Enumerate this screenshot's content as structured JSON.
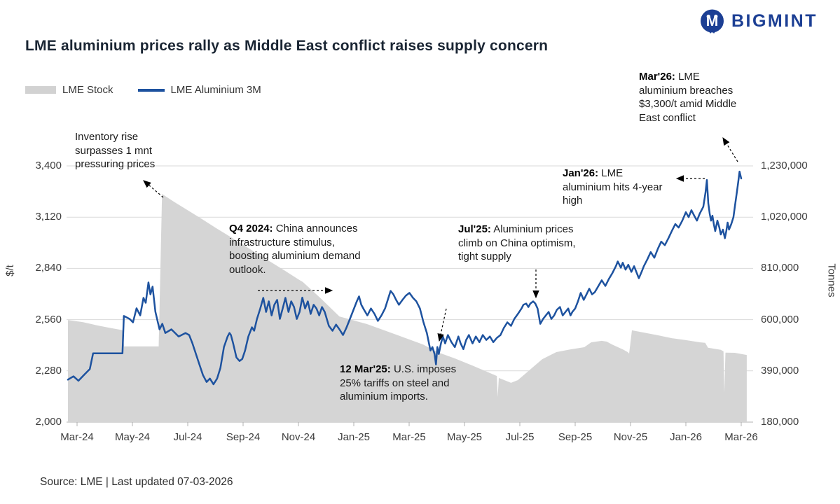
{
  "header": {
    "logo_text": "BIGMINT",
    "title": "LME aluminium prices rally as Middle East conflict raises supply concern"
  },
  "icons": {
    "logo": "bigmint-circle-m-icon"
  },
  "legend": [
    {
      "label": "LME Stock",
      "type": "area"
    },
    {
      "label": "LME Aluminium 3M",
      "type": "line"
    }
  ],
  "source_note": "Source: LME | Last updated 07-03-2026",
  "colors": {
    "line": "#1d529f",
    "area": "#d5d5d5",
    "logo": "#1c3f94",
    "grid": "#d9d9d9",
    "axis": "#b0b0b0",
    "title": "#1a2533",
    "annotation_arrow": "#000000"
  },
  "chart_data": {
    "type": "line",
    "title": "LME aluminium prices rally as Middle East conflict raises supply concern",
    "x_axis": {
      "labels": [
        "Mar-24",
        "May-24",
        "Jul-24",
        "Sep-24",
        "Nov-24",
        "Jan-25",
        "Mar-25",
        "May-25",
        "Jul-25",
        "Sep-25",
        "Nov-25",
        "Jan-26",
        "Mar-26"
      ],
      "unit": "months since Mar-2024 (0 = Mar-24, 24 = Mar-26)"
    },
    "y_left": {
      "label": "$/t",
      "ticks": [
        "3,400",
        "3,120",
        "2,840",
        "2,560",
        "2,280",
        "2,000"
      ],
      "range": [
        2000,
        3400
      ]
    },
    "y_right": {
      "label": "Tonnes",
      "ticks": [
        "1,230,000",
        "1,020,000",
        "810,000",
        "600,000",
        "390,000",
        "180,000"
      ],
      "range": [
        180000,
        1230000
      ]
    },
    "grid": true,
    "legend_position": "top-left",
    "series": [
      {
        "name": "LME Stock",
        "type": "area",
        "axis": "right",
        "points": [
          [
            -0.33,
            598000
          ],
          [
            0.2,
            590000
          ],
          [
            0.7,
            577000
          ],
          [
            1.2,
            566000
          ],
          [
            1.64,
            557000
          ],
          [
            1.7,
            490000
          ],
          [
            2.95,
            490000
          ],
          [
            3.07,
            1115000
          ],
          [
            3.5,
            1083000
          ],
          [
            4.0,
            1048000
          ],
          [
            4.5,
            1013000
          ],
          [
            5.0,
            977000
          ],
          [
            5.5,
            942000
          ],
          [
            6.0,
            907000
          ],
          [
            6.5,
            871000
          ],
          [
            7.0,
            836000
          ],
          [
            7.5,
            801000
          ],
          [
            8.0,
            765000
          ],
          [
            8.16,
            754000
          ],
          [
            8.78,
            690000
          ],
          [
            9.48,
            613000
          ],
          [
            10.47,
            582000
          ],
          [
            11.52,
            539000
          ],
          [
            12.51,
            498000
          ],
          [
            13.02,
            467000
          ],
          [
            13.65,
            441000
          ],
          [
            14.28,
            412000
          ],
          [
            14.92,
            381000
          ],
          [
            15.17,
            369000
          ],
          [
            15.2,
            283000
          ],
          [
            15.24,
            361000
          ],
          [
            15.68,
            341000
          ],
          [
            15.93,
            352000
          ],
          [
            16.31,
            389000
          ],
          [
            16.81,
            438000
          ],
          [
            17.32,
            467000
          ],
          [
            17.83,
            478000
          ],
          [
            18.33,
            487000
          ],
          [
            18.58,
            507000
          ],
          [
            18.96,
            513000
          ],
          [
            19.14,
            510000
          ],
          [
            19.34,
            498000
          ],
          [
            19.72,
            478000
          ],
          [
            19.9,
            467000
          ],
          [
            19.95,
            461000
          ],
          [
            20.05,
            556000
          ],
          [
            20.48,
            547000
          ],
          [
            20.98,
            536000
          ],
          [
            21.49,
            524000
          ],
          [
            22.0,
            516000
          ],
          [
            22.5,
            507000
          ],
          [
            22.7,
            505000
          ],
          [
            22.8,
            485000
          ],
          [
            23.26,
            476000
          ],
          [
            23.36,
            470000
          ],
          [
            23.39,
            300000
          ],
          [
            23.43,
            465000
          ],
          [
            23.77,
            464000
          ],
          [
            24.2,
            455000
          ]
        ]
      },
      {
        "name": "LME Aluminium 3M",
        "type": "line",
        "axis": "left",
        "points": [
          [
            -0.33,
            2232
          ],
          [
            -0.13,
            2250
          ],
          [
            0.05,
            2226
          ],
          [
            0.25,
            2258
          ],
          [
            0.46,
            2290
          ],
          [
            0.58,
            2376
          ],
          [
            1.64,
            2376
          ],
          [
            1.69,
            2580
          ],
          [
            1.9,
            2564
          ],
          [
            2.02,
            2545
          ],
          [
            2.15,
            2622
          ],
          [
            2.28,
            2583
          ],
          [
            2.4,
            2679
          ],
          [
            2.48,
            2652
          ],
          [
            2.58,
            2763
          ],
          [
            2.65,
            2698
          ],
          [
            2.73,
            2740
          ],
          [
            2.83,
            2603
          ],
          [
            2.98,
            2507
          ],
          [
            3.08,
            2537
          ],
          [
            3.19,
            2487
          ],
          [
            3.41,
            2507
          ],
          [
            3.67,
            2468
          ],
          [
            3.92,
            2487
          ],
          [
            4.05,
            2476
          ],
          [
            4.17,
            2430
          ],
          [
            4.42,
            2315
          ],
          [
            4.55,
            2257
          ],
          [
            4.68,
            2219
          ],
          [
            4.8,
            2238
          ],
          [
            4.93,
            2207
          ],
          [
            5.06,
            2238
          ],
          [
            5.18,
            2296
          ],
          [
            5.31,
            2411
          ],
          [
            5.44,
            2468
          ],
          [
            5.51,
            2487
          ],
          [
            5.56,
            2476
          ],
          [
            5.64,
            2430
          ],
          [
            5.76,
            2353
          ],
          [
            5.87,
            2334
          ],
          [
            5.97,
            2345
          ],
          [
            6.07,
            2391
          ],
          [
            6.19,
            2468
          ],
          [
            6.32,
            2518
          ],
          [
            6.4,
            2499
          ],
          [
            6.5,
            2564
          ],
          [
            6.62,
            2621
          ],
          [
            6.73,
            2679
          ],
          [
            6.83,
            2602
          ],
          [
            6.93,
            2660
          ],
          [
            7.03,
            2583
          ],
          [
            7.13,
            2641
          ],
          [
            7.23,
            2668
          ],
          [
            7.33,
            2564
          ],
          [
            7.43,
            2621
          ],
          [
            7.53,
            2679
          ],
          [
            7.64,
            2602
          ],
          [
            7.74,
            2660
          ],
          [
            7.84,
            2629
          ],
          [
            7.94,
            2564
          ],
          [
            8.04,
            2602
          ],
          [
            8.14,
            2680
          ],
          [
            8.24,
            2621
          ],
          [
            8.34,
            2660
          ],
          [
            8.44,
            2591
          ],
          [
            8.55,
            2641
          ],
          [
            8.65,
            2621
          ],
          [
            8.75,
            2583
          ],
          [
            8.85,
            2629
          ],
          [
            8.95,
            2602
          ],
          [
            9.1,
            2526
          ],
          [
            9.23,
            2499
          ],
          [
            9.36,
            2533
          ],
          [
            9.48,
            2507
          ],
          [
            9.61,
            2476
          ],
          [
            9.73,
            2514
          ],
          [
            9.86,
            2564
          ],
          [
            9.99,
            2614
          ],
          [
            10.11,
            2660
          ],
          [
            10.19,
            2687
          ],
          [
            10.27,
            2641
          ],
          [
            10.37,
            2614
          ],
          [
            10.49,
            2583
          ],
          [
            10.62,
            2621
          ],
          [
            10.75,
            2591
          ],
          [
            10.87,
            2553
          ],
          [
            11.0,
            2583
          ],
          [
            11.13,
            2621
          ],
          [
            11.25,
            2679
          ],
          [
            11.33,
            2717
          ],
          [
            11.43,
            2698
          ],
          [
            11.53,
            2668
          ],
          [
            11.63,
            2641
          ],
          [
            11.76,
            2668
          ],
          [
            11.88,
            2691
          ],
          [
            12.01,
            2706
          ],
          [
            12.14,
            2679
          ],
          [
            12.26,
            2660
          ],
          [
            12.39,
            2621
          ],
          [
            12.52,
            2545
          ],
          [
            12.64,
            2487
          ],
          [
            12.77,
            2391
          ],
          [
            12.84,
            2410
          ],
          [
            12.92,
            2372
          ],
          [
            12.97,
            2315
          ],
          [
            13.02,
            2410
          ],
          [
            13.07,
            2372
          ],
          [
            13.15,
            2430
          ],
          [
            13.22,
            2468
          ],
          [
            13.3,
            2430
          ],
          [
            13.4,
            2476
          ],
          [
            13.53,
            2437
          ],
          [
            13.65,
            2410
          ],
          [
            13.78,
            2468
          ],
          [
            13.86,
            2430
          ],
          [
            13.96,
            2399
          ],
          [
            14.06,
            2449
          ],
          [
            14.16,
            2476
          ],
          [
            14.29,
            2430
          ],
          [
            14.41,
            2468
          ],
          [
            14.54,
            2437
          ],
          [
            14.66,
            2476
          ],
          [
            14.79,
            2449
          ],
          [
            14.92,
            2468
          ],
          [
            15.04,
            2437
          ],
          [
            15.17,
            2460
          ],
          [
            15.3,
            2476
          ],
          [
            15.42,
            2514
          ],
          [
            15.55,
            2545
          ],
          [
            15.68,
            2526
          ],
          [
            15.8,
            2564
          ],
          [
            15.93,
            2591
          ],
          [
            16.06,
            2621
          ],
          [
            16.13,
            2641
          ],
          [
            16.23,
            2648
          ],
          [
            16.31,
            2629
          ],
          [
            16.38,
            2648
          ],
          [
            16.48,
            2660
          ],
          [
            16.56,
            2648
          ],
          [
            16.64,
            2621
          ],
          [
            16.74,
            2537
          ],
          [
            16.84,
            2564
          ],
          [
            16.94,
            2583
          ],
          [
            17.04,
            2602
          ],
          [
            17.14,
            2564
          ],
          [
            17.24,
            2583
          ],
          [
            17.34,
            2614
          ],
          [
            17.45,
            2629
          ],
          [
            17.55,
            2583
          ],
          [
            17.65,
            2602
          ],
          [
            17.75,
            2621
          ],
          [
            17.83,
            2583
          ],
          [
            17.9,
            2602
          ],
          [
            18.0,
            2621
          ],
          [
            18.1,
            2660
          ],
          [
            18.2,
            2706
          ],
          [
            18.31,
            2668
          ],
          [
            18.41,
            2698
          ],
          [
            18.51,
            2729
          ],
          [
            18.61,
            2698
          ],
          [
            18.71,
            2710
          ],
          [
            18.84,
            2744
          ],
          [
            18.96,
            2775
          ],
          [
            19.09,
            2744
          ],
          [
            19.22,
            2783
          ],
          [
            19.34,
            2813
          ],
          [
            19.47,
            2852
          ],
          [
            19.54,
            2878
          ],
          [
            19.65,
            2844
          ],
          [
            19.72,
            2871
          ],
          [
            19.82,
            2833
          ],
          [
            19.92,
            2860
          ],
          [
            20.03,
            2821
          ],
          [
            20.13,
            2852
          ],
          [
            20.23,
            2813
          ],
          [
            20.3,
            2786
          ],
          [
            20.4,
            2821
          ],
          [
            20.48,
            2852
          ],
          [
            20.61,
            2890
          ],
          [
            20.73,
            2929
          ],
          [
            20.86,
            2898
          ],
          [
            20.99,
            2948
          ],
          [
            21.11,
            2986
          ],
          [
            21.24,
            2967
          ],
          [
            21.37,
            3005
          ],
          [
            21.49,
            3044
          ],
          [
            21.62,
            3082
          ],
          [
            21.74,
            3063
          ],
          [
            21.87,
            3101
          ],
          [
            22.0,
            3147
          ],
          [
            22.1,
            3120
          ],
          [
            22.2,
            3158
          ],
          [
            22.3,
            3128
          ],
          [
            22.4,
            3101
          ],
          [
            22.5,
            3139
          ],
          [
            22.63,
            3177
          ],
          [
            22.71,
            3254
          ],
          [
            22.76,
            3323
          ],
          [
            22.81,
            3196
          ],
          [
            22.86,
            3139
          ],
          [
            22.91,
            3101
          ],
          [
            22.96,
            3128
          ],
          [
            23.01,
            3082
          ],
          [
            23.06,
            3044
          ],
          [
            23.14,
            3101
          ],
          [
            23.21,
            3063
          ],
          [
            23.26,
            3025
          ],
          [
            23.34,
            3052
          ],
          [
            23.41,
            3005
          ],
          [
            23.46,
            3044
          ],
          [
            23.51,
            3090
          ],
          [
            23.56,
            3052
          ],
          [
            23.64,
            3082
          ],
          [
            23.72,
            3120
          ],
          [
            23.77,
            3177
          ],
          [
            23.84,
            3254
          ],
          [
            23.89,
            3311
          ],
          [
            23.94,
            3369
          ],
          [
            24.0,
            3331
          ]
        ]
      }
    ],
    "annotations": [
      {
        "id": "inventory",
        "prefix": "",
        "text": "Inventory rise\nsurpasses 1 mnt\npressuring prices"
      },
      {
        "id": "q4",
        "prefix": "Q4 2024:",
        "text": " China announces\ninfrastructure stimulus,\nboosting aluminium demand\noutlook."
      },
      {
        "id": "mar25",
        "prefix": "12 Mar'25:",
        "text": " U.S. imposes\n25% tariffs on steel and\naluminium imports."
      },
      {
        "id": "jul25",
        "prefix": "Jul'25:",
        "text": " Aluminium prices\nclimb on China optimism,\ntight supply"
      },
      {
        "id": "jan26",
        "prefix": "Jan'26:",
        "text": " LME\naluminium hits 4-year\nhigh"
      },
      {
        "id": "mar26",
        "prefix": "Mar'26:",
        "text": " LME\naluminium breaches\n$3,300/t amid Middle\nEast conflict"
      }
    ]
  }
}
